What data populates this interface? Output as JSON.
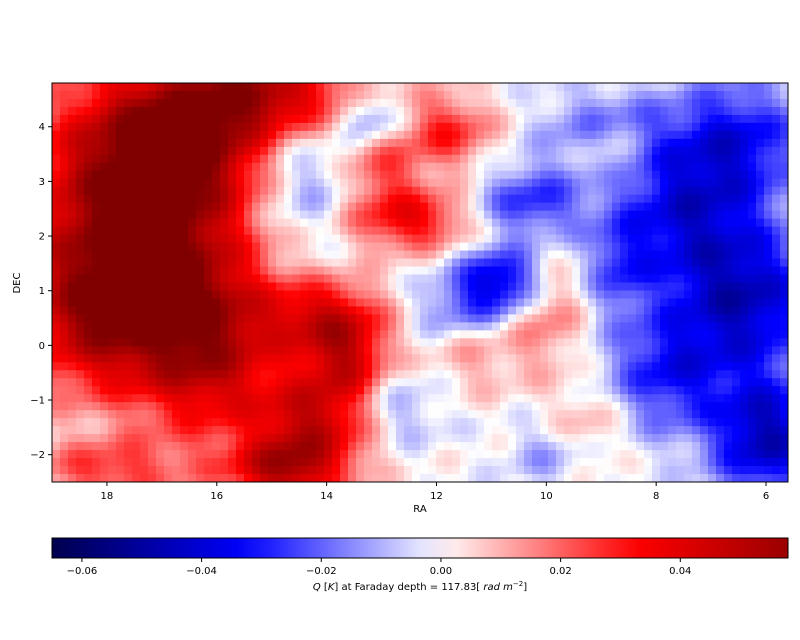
{
  "chart_data": {
    "type": "heatmap",
    "title": "",
    "xlabel": "RA",
    "ylabel": "DEC",
    "xlim": [
      19.0,
      5.6
    ],
    "ylim": [
      -2.5,
      4.8
    ],
    "x_inverted": true,
    "xticks": [
      18,
      16,
      14,
      12,
      10,
      8,
      6
    ],
    "xtick_labels": [
      "18",
      "16",
      "14",
      "12",
      "10",
      "8",
      "6"
    ],
    "yticks": [
      -2,
      -1,
      0,
      1,
      2,
      3,
      4
    ],
    "ytick_labels": [
      "−2",
      "−1",
      "0",
      "1",
      "2",
      "3",
      "4"
    ],
    "colormap": "seismic",
    "colormap_stops": [
      "#00004d",
      "#0000ff",
      "#ffffff",
      "#ff0000",
      "#800000"
    ],
    "colorbar": {
      "orientation": "horizontal",
      "location": "bottom",
      "vmin": -0.065,
      "vmax": 0.058,
      "ticks": [
        -0.06,
        -0.04,
        -0.02,
        0.0,
        0.02,
        0.04
      ],
      "tick_labels": [
        "−0.06",
        "−0.04",
        "−0.02",
        "0.00",
        "0.02",
        "0.04"
      ],
      "label_parts": [
        {
          "text": "Q",
          "italic": true
        },
        {
          "text": " [",
          "italic": false
        },
        {
          "text": "K",
          "italic": true
        },
        {
          "text": "] at Faraday depth =  117.83[ ",
          "italic": false
        },
        {
          "text": "rad m",
          "italic": true
        },
        {
          "text": "−2",
          "italic": false,
          "superscript": true
        },
        {
          "text": "]",
          "italic": false
        }
      ]
    },
    "grid": false,
    "field": {
      "description_of_value": "Q [K]",
      "components": [
        {
          "ra": 17.5,
          "dec": 2.5,
          "amp": 0.06,
          "sra": 1.4,
          "sdec": 1.6
        },
        {
          "ra": 18.2,
          "dec": 0.5,
          "amp": 0.04,
          "sra": 1.0,
          "sdec": 1.0
        },
        {
          "ra": 16.5,
          "dec": 3.8,
          "amp": 0.04,
          "sra": 1.2,
          "sdec": 0.9
        },
        {
          "ra": 16.2,
          "dec": 0.0,
          "amp": 0.048,
          "sra": 0.9,
          "sdec": 1.2
        },
        {
          "ra": 15.0,
          "dec": 4.6,
          "amp": 0.04,
          "sra": 1.2,
          "sdec": 0.5
        },
        {
          "ra": 14.0,
          "dec": 0.5,
          "amp": 0.04,
          "sra": 0.8,
          "sdec": 0.5
        },
        {
          "ra": 12.5,
          "dec": 2.3,
          "amp": 0.036,
          "sra": 0.8,
          "sdec": 0.4
        },
        {
          "ra": 13.0,
          "dec": 3.2,
          "amp": 0.022,
          "sra": 0.5,
          "sdec": 0.4
        },
        {
          "ra": 11.8,
          "dec": 3.9,
          "amp": 0.028,
          "sra": 0.6,
          "sdec": 0.5
        },
        {
          "ra": 14.2,
          "dec": -1.4,
          "amp": 0.045,
          "sra": 0.8,
          "sdec": 0.7
        },
        {
          "ra": 14.8,
          "dec": -2.3,
          "amp": 0.04,
          "sra": 0.7,
          "sdec": 0.4
        },
        {
          "ra": 13.6,
          "dec": -0.3,
          "amp": 0.03,
          "sra": 0.5,
          "sdec": 0.5
        },
        {
          "ra": 18.0,
          "dec": -2.3,
          "amp": 0.025,
          "sra": 1.0,
          "sdec": 0.4
        },
        {
          "ra": 11.3,
          "dec": 0.0,
          "amp": 0.014,
          "sra": 0.6,
          "sdec": 0.6
        },
        {
          "ra": 10.0,
          "dec": 0.7,
          "amp": 0.02,
          "sra": 0.5,
          "sdec": 0.8
        },
        {
          "ra": 9.2,
          "dec": -1.4,
          "amp": 0.012,
          "sra": 0.5,
          "sdec": 0.5
        },
        {
          "ra": 8.8,
          "dec": 3.6,
          "amp": 0.014,
          "sra": 0.4,
          "sdec": 0.4
        },
        {
          "ra": 10.8,
          "dec": 1.2,
          "amp": -0.04,
          "sra": 0.6,
          "sdec": 0.4
        },
        {
          "ra": 11.5,
          "dec": 0.6,
          "amp": -0.022,
          "sra": 0.7,
          "sdec": 0.4
        },
        {
          "ra": 14.5,
          "dec": 3.0,
          "amp": -0.02,
          "sra": 0.7,
          "sdec": 0.8
        },
        {
          "ra": 13.2,
          "dec": 4.2,
          "amp": -0.022,
          "sra": 0.4,
          "sdec": 0.3
        },
        {
          "ra": 10.3,
          "dec": 2.6,
          "amp": -0.028,
          "sra": 0.7,
          "sdec": 0.5
        },
        {
          "ra": 9.0,
          "dec": 4.0,
          "amp": -0.018,
          "sra": 0.8,
          "sdec": 0.5
        },
        {
          "ra": 7.5,
          "dec": 2.4,
          "amp": -0.035,
          "sra": 1.0,
          "sdec": 1.0
        },
        {
          "ra": 6.5,
          "dec": 3.8,
          "amp": -0.03,
          "sra": 0.9,
          "sdec": 0.8
        },
        {
          "ra": 6.3,
          "dec": 0.8,
          "amp": -0.04,
          "sra": 0.9,
          "sdec": 0.9
        },
        {
          "ra": 6.0,
          "dec": -1.7,
          "amp": -0.045,
          "sra": 0.7,
          "sdec": 0.8
        },
        {
          "ra": 7.8,
          "dec": -0.5,
          "amp": -0.03,
          "sra": 0.8,
          "sdec": 0.8
        },
        {
          "ra": 12.8,
          "dec": -1.2,
          "amp": -0.016,
          "sra": 0.6,
          "sdec": 0.5
        },
        {
          "ra": 10.0,
          "dec": -2.0,
          "amp": -0.012,
          "sra": 0.5,
          "sdec": 0.4
        },
        {
          "ra": 8.7,
          "dec": 1.4,
          "amp": -0.018,
          "sra": 0.4,
          "sdec": 0.6
        }
      ],
      "noise_amplitude": 0.006
    }
  }
}
